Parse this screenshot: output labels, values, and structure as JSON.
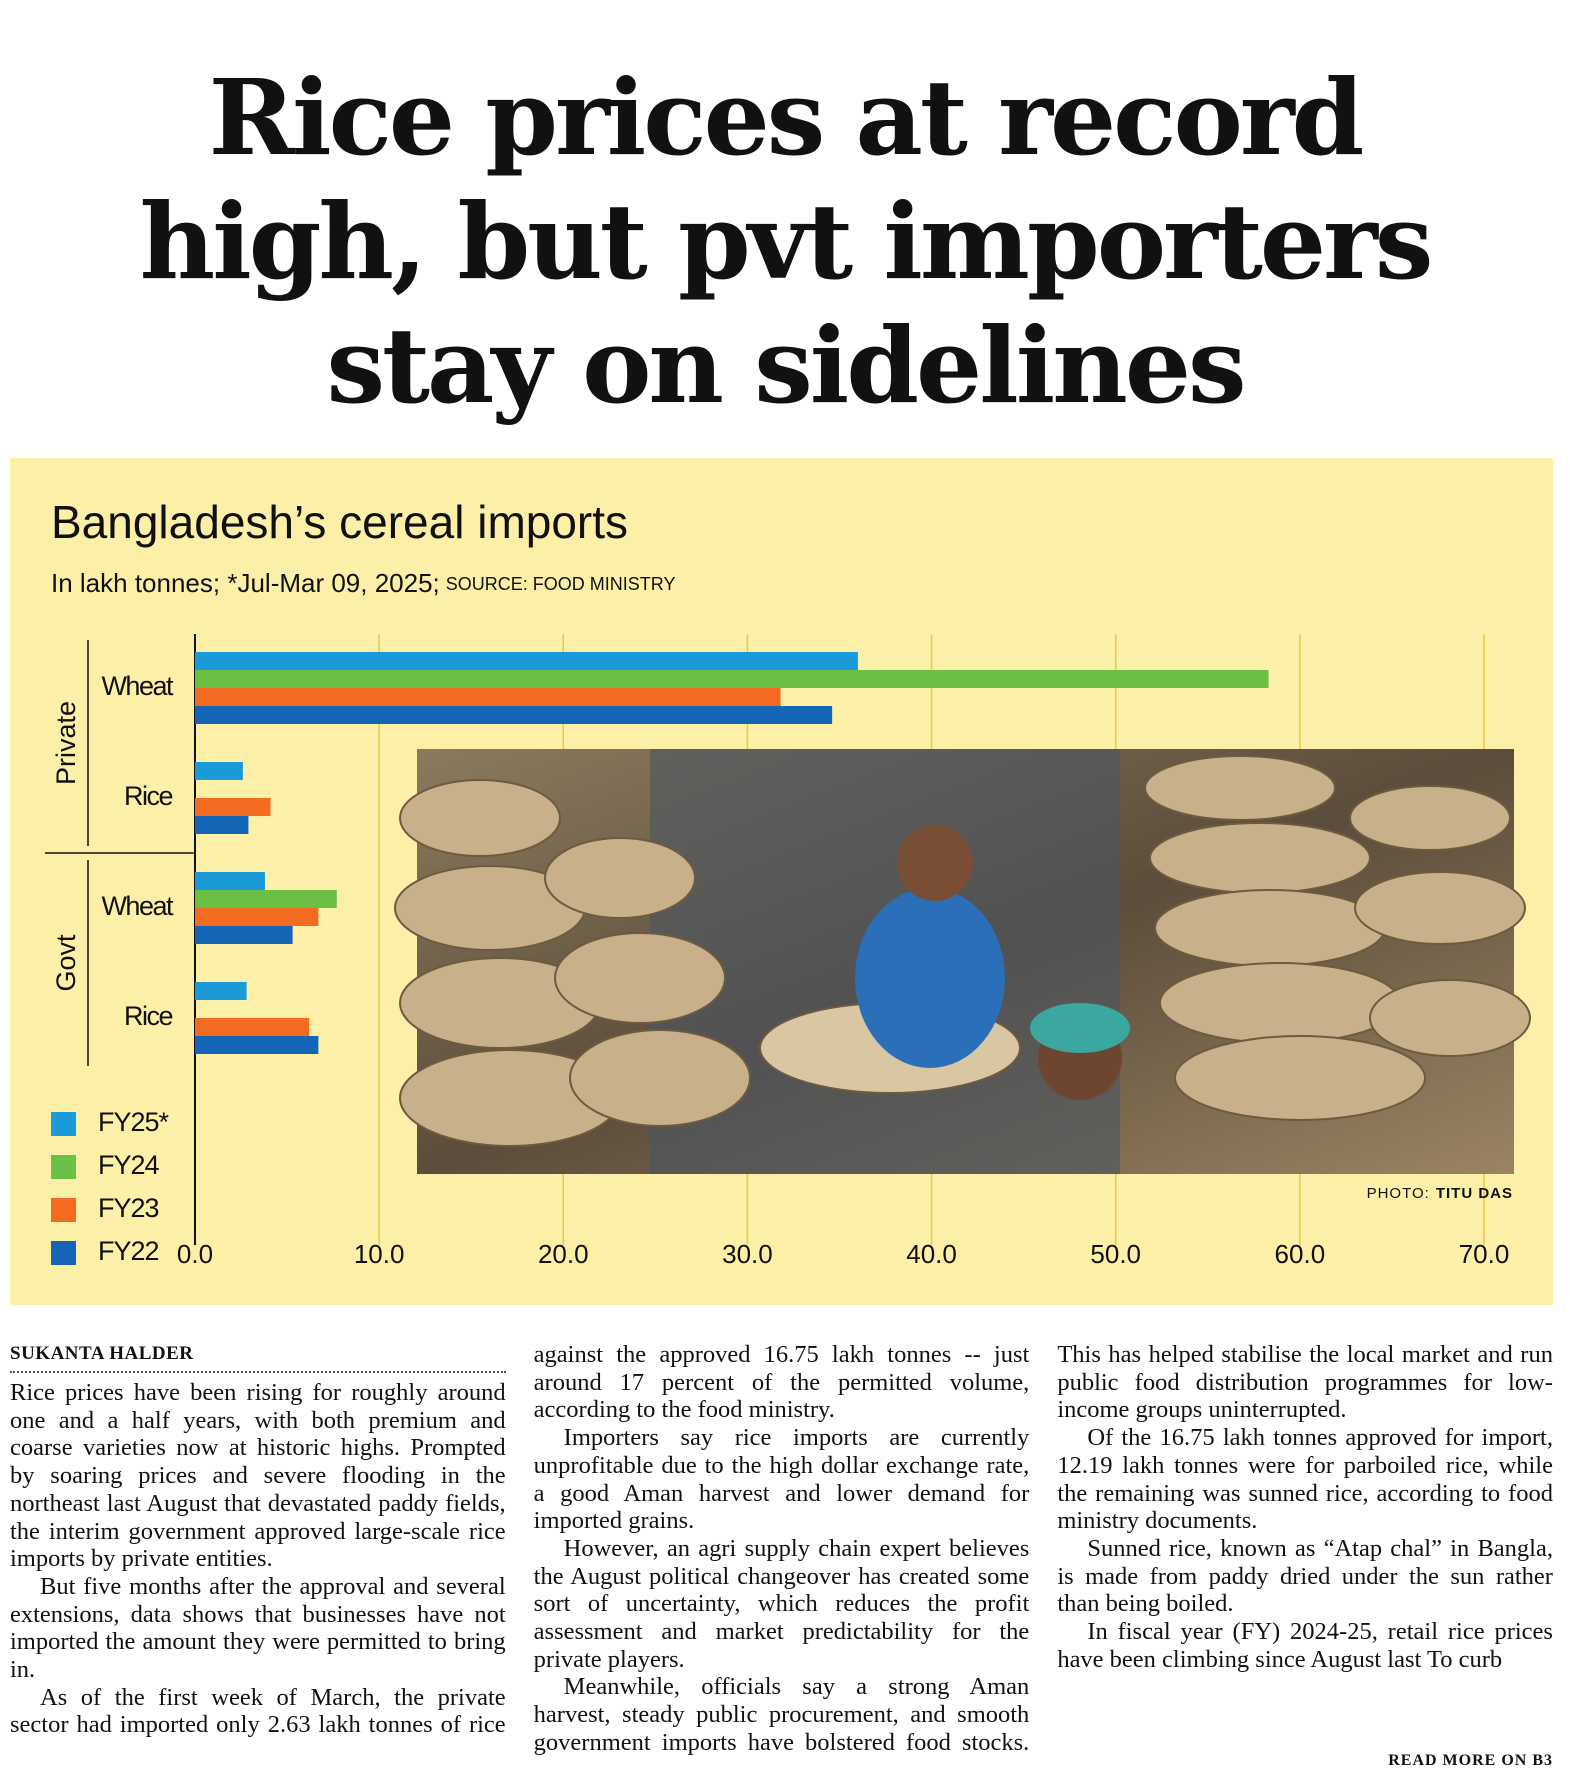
{
  "headline": [
    "Rice prices at record",
    "high, but pvt importers",
    "stay on sidelines"
  ],
  "chart_data": {
    "type": "bar",
    "orientation": "horizontal",
    "title": "Bangladesh’s cereal imports",
    "subtitle": "In lakh tonnes; *Jul-Mar 09, 2025;",
    "source": "SOURCE: FOOD MINISTRY",
    "groups": [
      "Private",
      "Govt"
    ],
    "categories": [
      "Wheat",
      "Rice",
      "Wheat",
      "Rice"
    ],
    "series": [
      {
        "name": "FY25*",
        "color": "#1a9bd7",
        "values": [
          36.0,
          2.6,
          3.8,
          2.8
        ]
      },
      {
        "name": "FY24",
        "color": "#6bbf44",
        "values": [
          58.3,
          null,
          7.7,
          null
        ]
      },
      {
        "name": "FY23",
        "color": "#f26b21",
        "values": [
          31.8,
          4.1,
          6.7,
          6.2
        ]
      },
      {
        "name": "FY22",
        "color": "#1565b7",
        "values": [
          34.6,
          2.9,
          5.3,
          6.7
        ]
      }
    ],
    "xlim": [
      0,
      70
    ],
    "xticks": [
      {
        "value": 0,
        "label": "0.0"
      },
      {
        "value": 10,
        "label": "10.0"
      },
      {
        "value": 20,
        "label": "20.0"
      },
      {
        "value": 30,
        "label": "30.0"
      },
      {
        "value": 40,
        "label": "40.0"
      },
      {
        "value": 50,
        "label": "50.0"
      },
      {
        "value": 60,
        "label": "60.0"
      },
      {
        "value": 70,
        "label": "70.0"
      }
    ],
    "grid": true,
    "legend": "bottom-left",
    "photo_credit": {
      "label": "PHOTO:",
      "name": "TITU DAS"
    }
  },
  "article": {
    "byline": "SUKANTA HALDER",
    "paragraphs": [
      "Rice prices have been rising for roughly around one and a half years, with both premium and coarse varieties now at historic highs. Prompted by soaring prices and severe flooding in the northeast last August that devastated paddy fields, the interim government approved large-scale rice imports by private entities.",
      "But five months after the approval and several extensions, data shows that businesses have not imported the amount they were permitted to bring in.",
      "As of the first week of March, the private sector had imported only 2.63 lakh tonnes of rice against the approved 16.75 lakh tonnes -- just around 17 percent of the permitted volume, according to the food ministry.",
      "Importers say rice imports are currently unprofitable due to the high dollar exchange rate, a good Aman harvest and lower demand for imported grains.",
      "However, an agri supply chain expert believes the August political changeover has created some sort of uncertainty, which reduces the profit assessment and market predictability for the private players.",
      "Meanwhile, officials say a strong Aman harvest, steady public procurement, and smooth government imports have bolstered food stocks. This has helped stabilise the local market and run public food distribution programmes for low-income groups uninterrupted.",
      "Of the 16.75 lakh tonnes approved for import, 12.19 lakh tonnes were for parboiled rice, while the remaining was sunned rice, according to food ministry documents.",
      "Sunned rice, known as “Atap chal” in Bangla, is made from paddy dried under the sun rather than being boiled.",
      "In fiscal year (FY) 2024-25, retail rice prices have been climbing since August last To curb"
    ],
    "continuation": "READ MORE ON B3"
  }
}
